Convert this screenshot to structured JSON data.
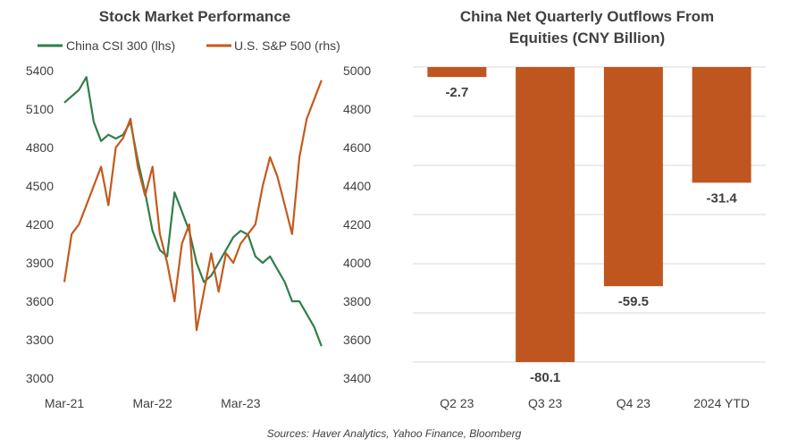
{
  "colors": {
    "china": "#2e7f4a",
    "us": "#c45a1c",
    "bar": "#c0561f",
    "text": "#404040",
    "grid": "#d9d9d9"
  },
  "source_note": "Sources: Haver Analytics, Yahoo Finance, Bloomberg",
  "chart_data": [
    {
      "type": "line",
      "title": "Stock Market Performance",
      "x_tick_labels": [
        "Mar-21",
        "Mar-22",
        "Mar-23"
      ],
      "y_left_ticks": [
        "3000",
        "3300",
        "3600",
        "3900",
        "4200",
        "4500",
        "4800",
        "5100",
        "5400"
      ],
      "y_right_ticks": [
        "3400",
        "3600",
        "3800",
        "4000",
        "4200",
        "4400",
        "4600",
        "4800",
        "5000"
      ],
      "ylim_left": [
        3000,
        5400
      ],
      "ylim_right": [
        3400,
        5000
      ],
      "x_range": [
        "2021-03",
        "2024-03"
      ],
      "series": [
        {
          "name": "China CSI 300 (lhs)",
          "axis": "left",
          "color": "#2e7f4a",
          "x": [
            "2021-03",
            "2021-05",
            "2021-06",
            "2021-07",
            "2021-08",
            "2021-09",
            "2021-10",
            "2021-11",
            "2021-12",
            "2022-01",
            "2022-02",
            "2022-03",
            "2022-04",
            "2022-05",
            "2022-06",
            "2022-07",
            "2022-08",
            "2022-09",
            "2022-10",
            "2022-11",
            "2022-12",
            "2023-01",
            "2023-02",
            "2023-03",
            "2023-04",
            "2023-05",
            "2023-06",
            "2023-07",
            "2023-08",
            "2023-09",
            "2023-10",
            "2023-11",
            "2023-12",
            "2024-01",
            "2024-02"
          ],
          "y": [
            5150,
            5250,
            5350,
            5000,
            4850,
            4900,
            4870,
            4900,
            5000,
            4700,
            4450,
            4150,
            4000,
            3950,
            4450,
            4300,
            4150,
            3900,
            3750,
            3800,
            3900,
            4000,
            4100,
            4150,
            4120,
            3950,
            3900,
            3950,
            3850,
            3750,
            3600,
            3600,
            3500,
            3400,
            3250
          ]
        },
        {
          "name": "U.S. S&P 500 (rhs)",
          "axis": "right",
          "color": "#c45a1c",
          "x": [
            "2021-03",
            "2021-04",
            "2021-05",
            "2021-06",
            "2021-07",
            "2021-08",
            "2021-09",
            "2021-10",
            "2021-11",
            "2021-12",
            "2022-01",
            "2022-02",
            "2022-03",
            "2022-04",
            "2022-05",
            "2022-06",
            "2022-07",
            "2022-08",
            "2022-09",
            "2022-10",
            "2022-11",
            "2022-12",
            "2023-01",
            "2023-02",
            "2023-03",
            "2023-04",
            "2023-05",
            "2023-06",
            "2023-07",
            "2023-08",
            "2023-09",
            "2023-10",
            "2023-11",
            "2023-12",
            "2024-01",
            "2024-02"
          ],
          "y": [
            3900,
            4150,
            4200,
            4300,
            4400,
            4500,
            4300,
            4600,
            4650,
            4750,
            4500,
            4350,
            4500,
            4150,
            4000,
            3800,
            4100,
            4200,
            3650,
            3850,
            4050,
            3850,
            4050,
            4000,
            4100,
            4150,
            4200,
            4400,
            4550,
            4450,
            4300,
            4150,
            4550,
            4750,
            4850,
            4950
          ]
        }
      ]
    },
    {
      "type": "bar",
      "title": "China Net Quarterly Outflows From Equities (CNY Billion)",
      "title_lines": [
        "China Net Quarterly Outflows From",
        "Equities (CNY Billion)"
      ],
      "categories": [
        "Q2 23",
        "Q3 23",
        "Q4 23",
        "2024 YTD"
      ],
      "values": [
        -2.7,
        -80.1,
        -59.5,
        -31.4
      ],
      "value_labels": [
        "-2.7",
        "-80.1",
        "-59.5",
        "-31.4"
      ],
      "ylim": [
        -80.1,
        0
      ],
      "grid": true
    }
  ]
}
